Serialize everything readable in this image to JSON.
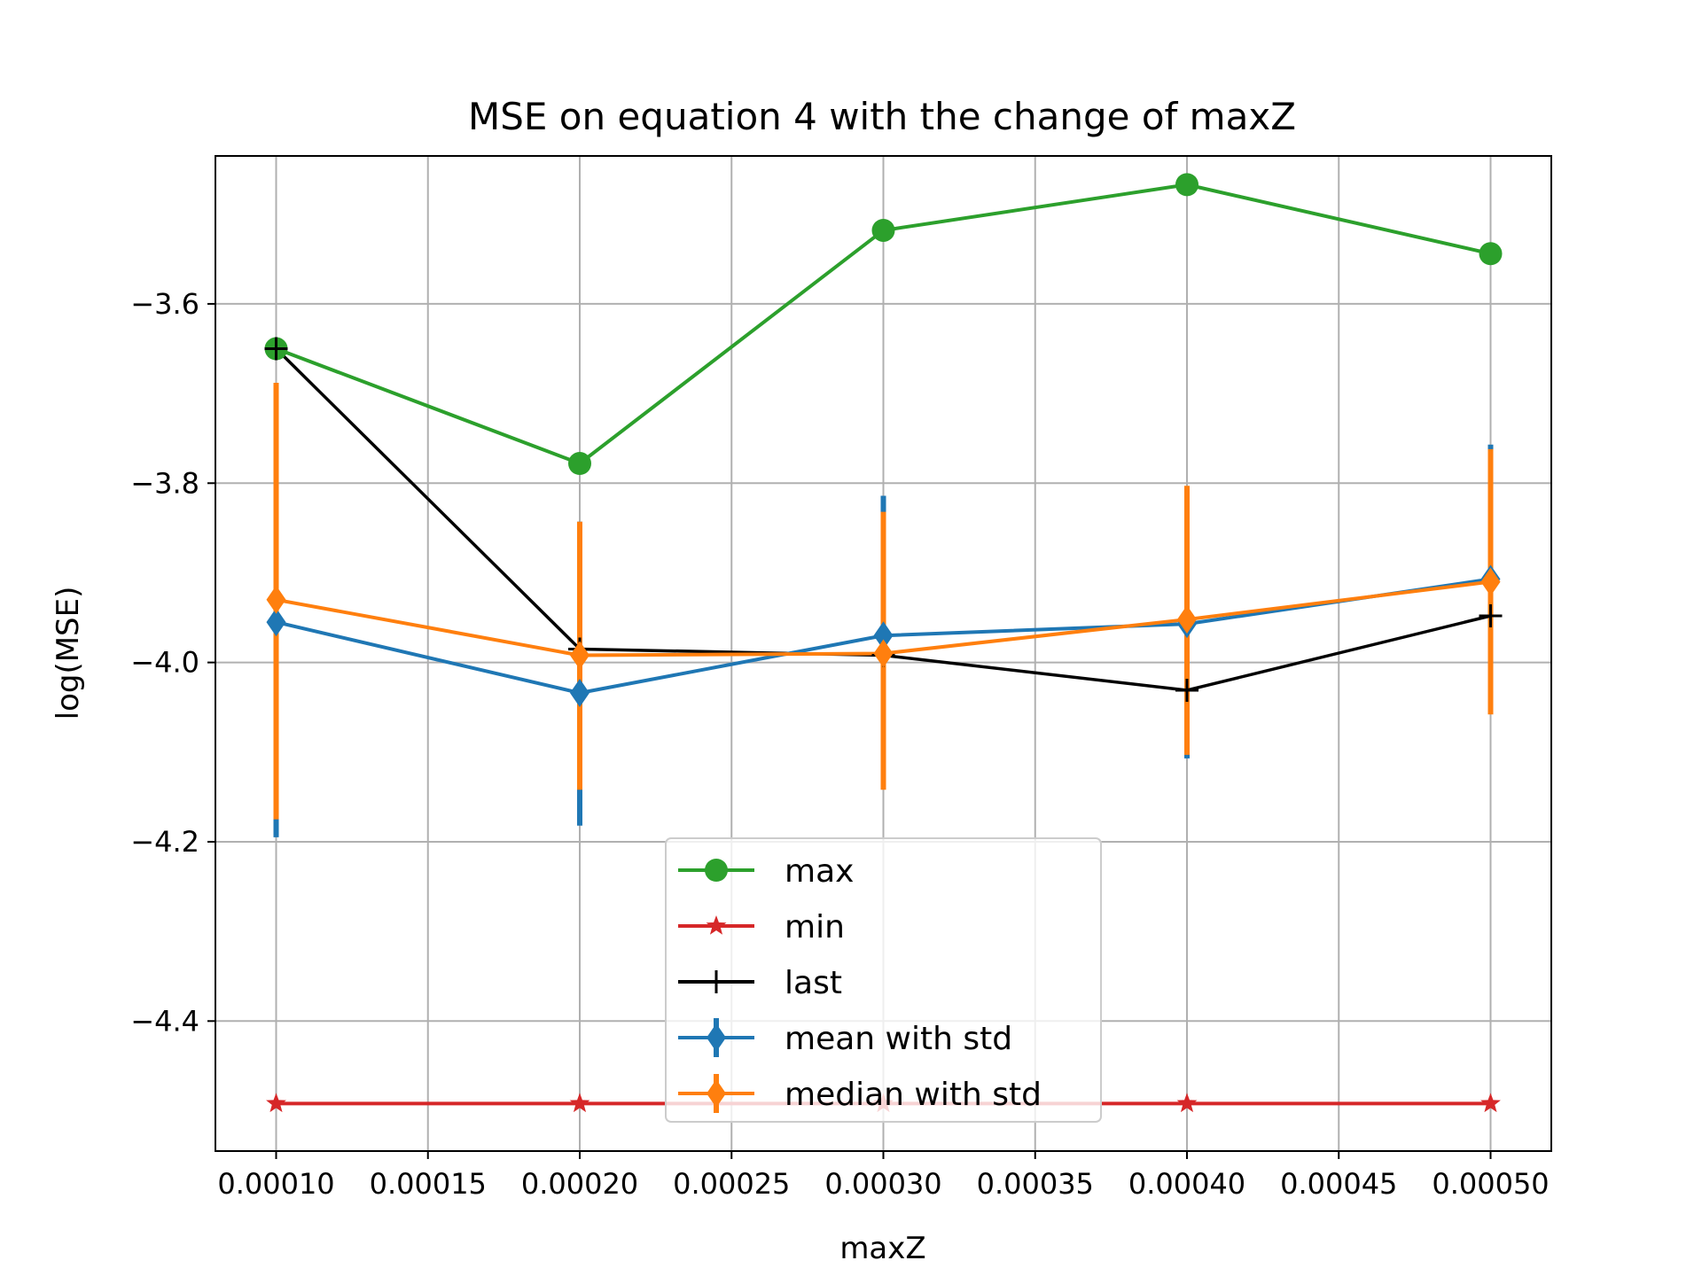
{
  "chart_data": {
    "type": "line",
    "title": "MSE on equation 4 with the change of maxZ",
    "xlabel": "maxZ",
    "ylabel": "log(MSE)",
    "xlim": [
      8e-05,
      0.00052
    ],
    "ylim": [
      -4.545,
      -3.435
    ],
    "grid": true,
    "legend_position": "lower-center",
    "x": [
      0.0001,
      0.0002,
      0.0003,
      0.0004,
      0.0005
    ],
    "x_tick_values": [
      0.0001,
      0.00015,
      0.0002,
      0.00025,
      0.0003,
      0.00035,
      0.0004,
      0.00045,
      0.0005
    ],
    "x_tick_labels": [
      "0.00010",
      "0.00015",
      "0.00020",
      "0.00025",
      "0.00030",
      "0.00035",
      "0.00040",
      "0.00045",
      "0.00050"
    ],
    "y_tick_values": [
      -3.6,
      -3.8,
      -4.0,
      -4.2,
      -4.4
    ],
    "y_tick_labels": [
      "−3.6",
      "−3.8",
      "−4.0",
      "−4.2",
      "−4.4"
    ],
    "series": [
      {
        "name": "max",
        "color": "#2ca02c",
        "marker": "circle",
        "values": [
          -3.65,
          -3.778,
          -3.518,
          -3.467,
          -3.544
        ]
      },
      {
        "name": "min",
        "color": "#d62728",
        "marker": "star",
        "values": [
          -4.492,
          -4.492,
          -4.492,
          -4.492,
          -4.492
        ]
      },
      {
        "name": "last",
        "color": "#000000",
        "marker": "plus",
        "values": [
          -3.65,
          -3.985,
          -3.992,
          -4.031,
          -3.948
        ]
      },
      {
        "name": "mean with std",
        "color": "#1f77b4",
        "marker": "diamond",
        "values": [
          -3.955,
          -4.034,
          -3.97,
          -3.957,
          -3.907
        ],
        "err_low": [
          -4.195,
          -4.182,
          -4.12,
          -4.107,
          -4.055
        ],
        "err_high": [
          -3.69,
          -3.843,
          -3.814,
          -3.805,
          -3.757
        ]
      },
      {
        "name": "median with std",
        "color": "#ff7f0e",
        "marker": "diamond",
        "values": [
          -3.93,
          -3.992,
          -3.99,
          -3.952,
          -3.91
        ],
        "err_low": [
          -4.175,
          -4.142,
          -4.142,
          -4.103,
          -4.058
        ],
        "err_high": [
          -3.688,
          -3.843,
          -3.832,
          -3.803,
          -3.762
        ]
      }
    ]
  }
}
